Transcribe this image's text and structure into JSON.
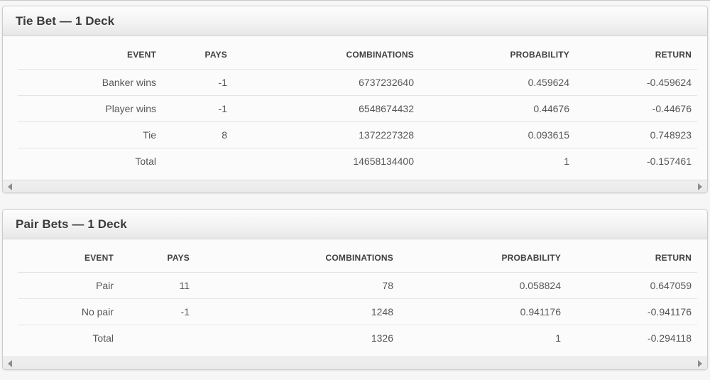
{
  "colors": {
    "page_background": "#f6f6f6",
    "panel_border": "#cbcbcb",
    "header_gradient_top": "#fdfdfd",
    "header_gradient_bottom": "#e7e7e7",
    "title_text": "#3b3b3d",
    "cell_text": "#565758",
    "row_separator": "#e4e4e4",
    "scrollbar_track": "#ececec",
    "scrollbar_arrow": "#8c8c8c"
  },
  "tables": [
    {
      "title": "Tie Bet — 1 Deck",
      "columns": [
        "EVENT",
        "PAYS",
        "COMBINATIONS",
        "PROBABILITY",
        "RETURN"
      ],
      "rows": [
        [
          "Banker wins",
          "-1",
          "6737232640",
          "0.459624",
          "-0.459624"
        ],
        [
          "Player wins",
          "-1",
          "6548674432",
          "0.44676",
          "-0.44676"
        ],
        [
          "Tie",
          "8",
          "1372227328",
          "0.093615",
          "0.748923"
        ],
        [
          "Total",
          "",
          "14658134400",
          "1",
          "-0.157461"
        ]
      ]
    },
    {
      "title": "Pair Bets — 1 Deck",
      "columns": [
        "EVENT",
        "PAYS",
        "COMBINATIONS",
        "PROBABILITY",
        "RETURN"
      ],
      "rows": [
        [
          "Pair",
          "11",
          "78",
          "0.058824",
          "0.647059"
        ],
        [
          "No pair",
          "-1",
          "1248",
          "0.941176",
          "-0.941176"
        ],
        [
          "Total",
          "",
          "1326",
          "1",
          "-0.294118"
        ]
      ]
    }
  ]
}
